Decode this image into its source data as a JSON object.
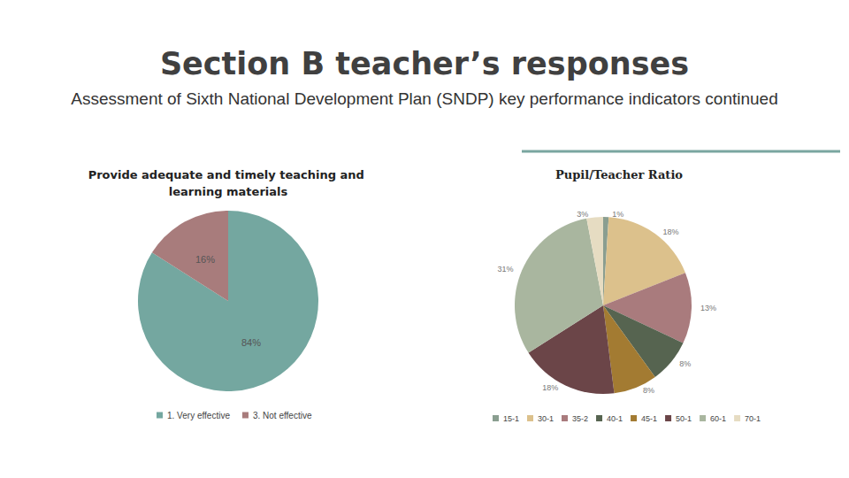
{
  "header": {
    "title": "Section B teacher’s responses",
    "subtitle": "Assessment of Sixth National Development Plan (SNDP) key performance indicators continued"
  },
  "chart_data": [
    {
      "type": "pie",
      "title": "Provide adequate and timely teaching and learning materials",
      "categories": [
        "1. Very effective",
        "3. Not effective"
      ],
      "values": [
        84,
        16
      ],
      "value_labels": [
        "84%",
        "16%"
      ],
      "colors": [
        "#74a7a0",
        "#a87c7c"
      ],
      "data_labels": true,
      "legend": "bottom"
    },
    {
      "type": "pie",
      "title": "Pupil/Teacher Ratio",
      "categories": [
        "15-1",
        "30-1",
        "35-2",
        "40-1",
        "45-1",
        "50-1",
        "60-1",
        "70-1"
      ],
      "values": [
        1,
        18,
        13,
        8,
        8,
        18,
        31,
        3
      ],
      "value_labels": [
        "1%",
        "18%",
        "13%",
        "8%",
        "8%",
        "18%",
        "31%",
        "3%"
      ],
      "colors": [
        "#8a9e90",
        "#dcc18c",
        "#a97b7d",
        "#566450",
        "#a37b32",
        "#6b4548",
        "#a9b69f",
        "#e6dcc2"
      ],
      "data_labels": true,
      "legend": "bottom"
    }
  ]
}
